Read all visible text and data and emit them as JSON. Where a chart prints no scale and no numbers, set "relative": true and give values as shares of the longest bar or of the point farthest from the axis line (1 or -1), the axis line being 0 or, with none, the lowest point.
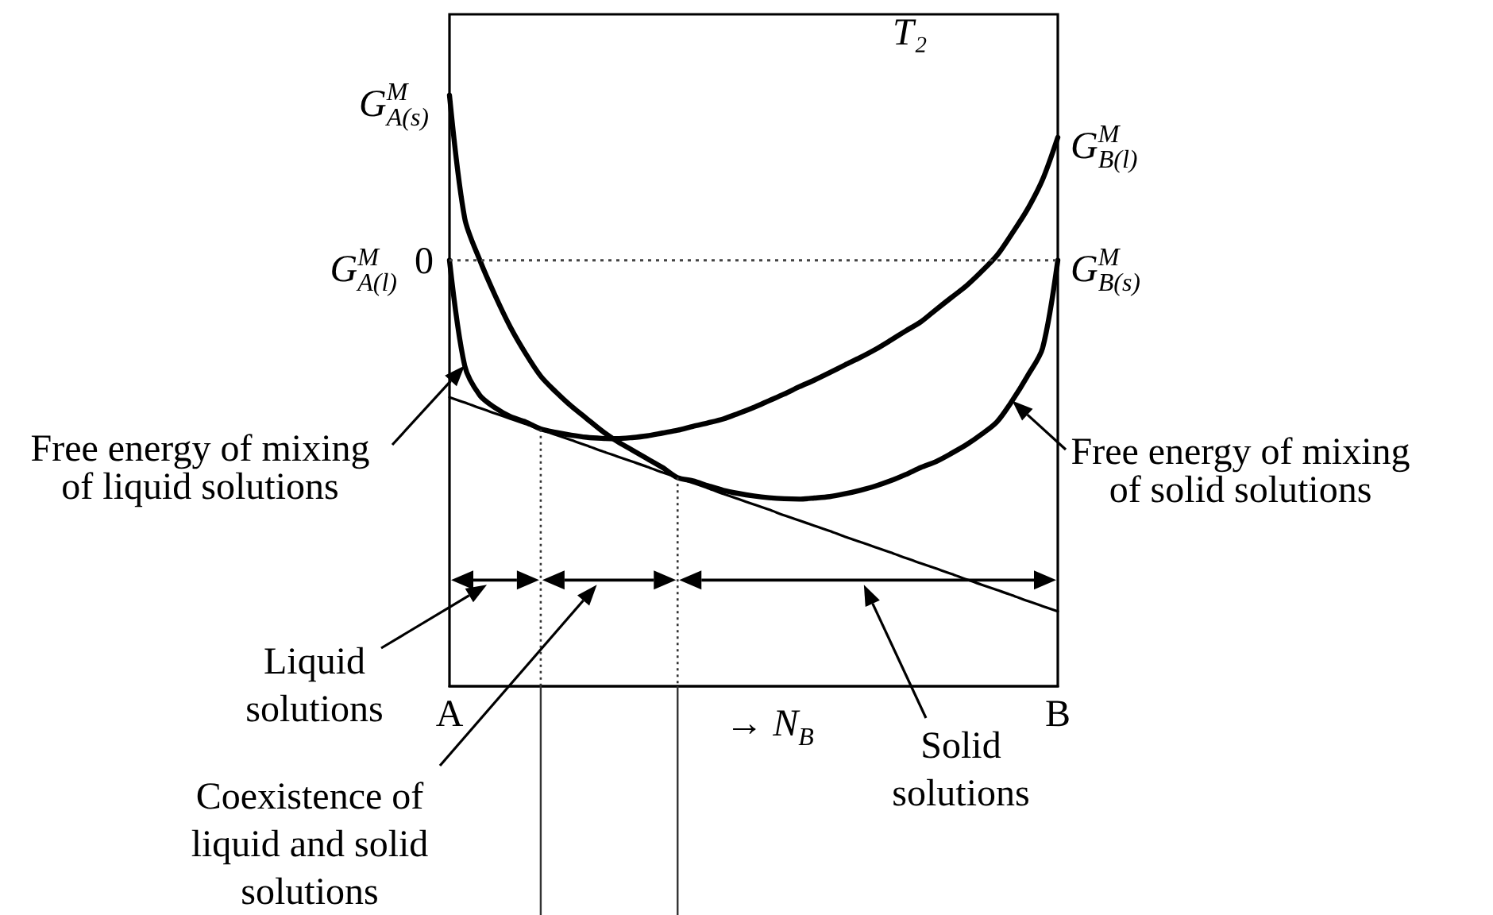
{
  "chart_data": {
    "type": "line",
    "title": "T₂",
    "xlabel": "→ N$_{B}$",
    "relative": true,
    "categories": [
      "A",
      null,
      null,
      null,
      null,
      null,
      null,
      null,
      null,
      null,
      null,
      null,
      null,
      null,
      null,
      null,
      null,
      null,
      null,
      null,
      null,
      null,
      null,
      null,
      null,
      null,
      null,
      null,
      null,
      null,
      null,
      null,
      null,
      null,
      null,
      null,
      null,
      null,
      null,
      null,
      "B"
    ],
    "series": [
      {
        "name": "Free energy of mixing of liquid solutions",
        "color": "#000000",
        "values": [
          0,
          -0.3,
          -0.385,
          -0.42,
          -0.445,
          -0.46,
          -0.48,
          -0.49,
          -0.498,
          -0.504,
          -0.507,
          -0.508,
          -0.505,
          -0.5,
          -0.492,
          -0.484,
          -0.473,
          -0.463,
          -0.452,
          -0.436,
          -0.419,
          -0.4,
          -0.381,
          -0.36,
          -0.341,
          -0.32,
          -0.298,
          -0.277,
          -0.254,
          -0.228,
          -0.201,
          -0.175,
          -0.14,
          -0.106,
          -0.072,
          -0.031,
          0.014,
          0.077,
          0.145,
          0.23,
          0.35
        ]
      },
      {
        "name": "Free energy of mixing of solid solutions",
        "color": "#000000",
        "values": [
          0.47,
          0.12,
          0,
          -0.1,
          -0.19,
          -0.265,
          -0.33,
          -0.375,
          -0.415,
          -0.45,
          -0.485,
          -0.515,
          -0.54,
          -0.565,
          -0.59,
          -0.619,
          -0.628,
          -0.642,
          -0.655,
          -0.664,
          -0.671,
          -0.676,
          -0.679,
          -0.68,
          -0.677,
          -0.673,
          -0.665,
          -0.655,
          -0.643,
          -0.628,
          -0.61,
          -0.59,
          -0.573,
          -0.55,
          -0.525,
          -0.495,
          -0.46,
          -0.4,
          -0.33,
          -0.25,
          0
        ]
      },
      {
        "color": "#000000",
        "values": [
          -0.39,
          -0.405,
          -0.421,
          -0.436,
          -0.451,
          -0.466,
          -0.482,
          -0.497,
          -0.512,
          -0.527,
          -0.543,
          -0.558,
          -0.573,
          -0.588,
          -0.604,
          -0.619,
          -0.634,
          -0.649,
          -0.665,
          -0.68,
          -0.695,
          -0.71,
          -0.726,
          -0.741,
          -0.756,
          -0.771,
          -0.787,
          -0.802,
          -0.817,
          -0.832,
          -0.848,
          -0.863,
          -0.878,
          -0.893,
          -0.909,
          -0.924,
          -0.939,
          -0.954,
          -0.97,
          -0.985,
          -1
        ]
      }
    ],
    "ref_lines": [
      {
        "axis": "y",
        "value": 0,
        "label": "0",
        "line_style": "dotted"
      }
    ],
    "annotations": [
      {
        "text": "G$^{M}$$_{A(s)}$",
        "x": "A",
        "y": 0.47
      },
      {
        "text": "G$^{M}$$_{A(l)}$",
        "x": "A",
        "y": 0
      },
      {
        "text": "G$^{M}$$_{B(l)}$",
        "x": "B",
        "y": 0.35
      },
      {
        "text": "G$^{M}$$_{B(s)}$",
        "x": "B",
        "y": 0
      },
      "Liquid solutions",
      "Coexistence of liquid and solid solutions",
      "Solid solutions"
    ]
  }
}
